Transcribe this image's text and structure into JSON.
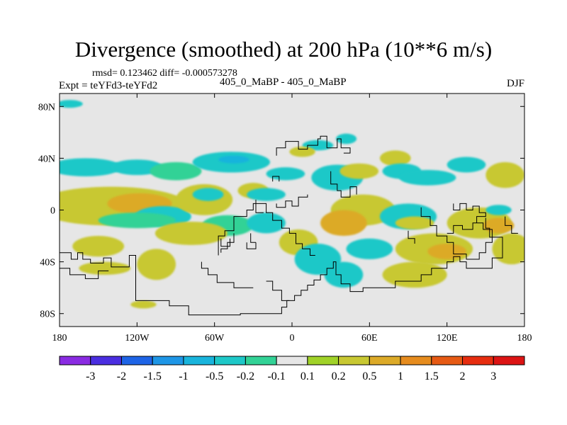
{
  "header": {
    "title": "Divergence (smoothed) at 200 hPa (10**6 m/s)",
    "stats": "rmsd= 0.123462  diff= -0.000573278",
    "expt": "Expt = teYFd3-teYFd2",
    "case": "405_0_MaBP - 405_0_MaBP",
    "season": "DJF"
  },
  "chart_data": {
    "type": "heatmap",
    "title": "Divergence (smoothed) at 200 hPa (10**6 m/s)",
    "subtitle": "405_0_MaBP - 405_0_MaBP",
    "xlabel": "",
    "ylabel": "",
    "xlim": [
      -180,
      180
    ],
    "ylim": [
      -90,
      90
    ],
    "x_ticks": [
      {
        "value": -180,
        "label": "180"
      },
      {
        "value": -120,
        "label": "120W"
      },
      {
        "value": -60,
        "label": "60W"
      },
      {
        "value": 0,
        "label": "0"
      },
      {
        "value": 60,
        "label": "60E"
      },
      {
        "value": 120,
        "label": "120E"
      },
      {
        "value": 180,
        "label": "180"
      }
    ],
    "y_ticks": [
      {
        "value": 80,
        "label": "80N"
      },
      {
        "value": 40,
        "label": "40N"
      },
      {
        "value": 0,
        "label": "0"
      },
      {
        "value": -40,
        "label": "40S"
      },
      {
        "value": -80,
        "label": "80S"
      }
    ],
    "background_color": "#e6e6e6",
    "legend": {
      "placement": "bottom",
      "labels": [
        "-3",
        "-2",
        "-1.5",
        "-1",
        "-0.5",
        "-0.2",
        "-0.1",
        "0.1",
        "0.2",
        "0.5",
        "1",
        "1.5",
        "2",
        "3"
      ],
      "colors": [
        "#8a2be2",
        "#4a2ee0",
        "#1e64e6",
        "#1e96e6",
        "#19b4dc",
        "#1ec8c8",
        "#32d296",
        "#e6e6e6",
        "#a0d228",
        "#c8c832",
        "#dcaa28",
        "#e68c1e",
        "#e65a14",
        "#e62d0f",
        "#dc1414"
      ]
    },
    "blobs": [
      {
        "lon": -172,
        "lat": 82,
        "rx": 10,
        "ry": 3,
        "value": -0.3
      },
      {
        "lon": -160,
        "lat": 33,
        "rx": 28,
        "ry": 7,
        "value": -0.3
      },
      {
        "lon": -120,
        "lat": 33,
        "rx": 20,
        "ry": 6,
        "value": -0.3
      },
      {
        "lon": -90,
        "lat": 30,
        "rx": 20,
        "ry": 7,
        "value": -0.2
      },
      {
        "lon": -47,
        "lat": 37,
        "rx": 30,
        "ry": 8,
        "value": -0.4
      },
      {
        "lon": -45,
        "lat": 39,
        "rx": 12,
        "ry": 3,
        "value": -0.9
      },
      {
        "lon": -140,
        "lat": 3,
        "rx": 60,
        "ry": 15,
        "value": 0.4
      },
      {
        "lon": -118,
        "lat": 5,
        "rx": 25,
        "ry": 8,
        "value": 0.9
      },
      {
        "lon": -100,
        "lat": -5,
        "rx": 22,
        "ry": 8,
        "value": -0.3
      },
      {
        "lon": -120,
        "lat": -8,
        "rx": 30,
        "ry": 6,
        "value": -0.2
      },
      {
        "lon": -68,
        "lat": 8,
        "rx": 22,
        "ry": 12,
        "value": 0.3
      },
      {
        "lon": -65,
        "lat": 12,
        "rx": 12,
        "ry": 5,
        "value": -0.3
      },
      {
        "lon": -50,
        "lat": -12,
        "rx": 20,
        "ry": 8,
        "value": -0.2
      },
      {
        "lon": -78,
        "lat": -18,
        "rx": 28,
        "ry": 9,
        "value": 0.3
      },
      {
        "lon": -30,
        "lat": 15,
        "rx": 12,
        "ry": 6,
        "value": 0.3
      },
      {
        "lon": -20,
        "lat": 12,
        "rx": 15,
        "ry": 5,
        "value": -0.3
      },
      {
        "lon": -20,
        "lat": -10,
        "rx": 15,
        "ry": 8,
        "value": -0.3
      },
      {
        "lon": -150,
        "lat": -28,
        "rx": 20,
        "ry": 8,
        "value": 0.3
      },
      {
        "lon": -105,
        "lat": -42,
        "rx": 15,
        "ry": 12,
        "value": 0.3
      },
      {
        "lon": -145,
        "lat": -45,
        "rx": 20,
        "ry": 5,
        "value": 0.3
      },
      {
        "lon": -115,
        "lat": -73,
        "rx": 10,
        "ry": 3,
        "value": 0.3
      },
      {
        "lon": 20,
        "lat": 50,
        "rx": 12,
        "ry": 4,
        "value": -0.3
      },
      {
        "lon": 8,
        "lat": 45,
        "rx": 10,
        "ry": 4,
        "value": 0.3
      },
      {
        "lon": 42,
        "lat": 55,
        "rx": 8,
        "ry": 4,
        "value": -0.3
      },
      {
        "lon": 35,
        "lat": 25,
        "rx": 20,
        "ry": 10,
        "value": -0.3
      },
      {
        "lon": 52,
        "lat": 30,
        "rx": 15,
        "ry": 6,
        "value": 0.3
      },
      {
        "lon": 80,
        "lat": 40,
        "rx": 12,
        "ry": 6,
        "value": 0.3
      },
      {
        "lon": 85,
        "lat": 30,
        "rx": 15,
        "ry": 6,
        "value": -0.3
      },
      {
        "lon": 105,
        "lat": 25,
        "rx": 22,
        "ry": 6,
        "value": -0.3
      },
      {
        "lon": 135,
        "lat": 35,
        "rx": 15,
        "ry": 6,
        "value": -0.3
      },
      {
        "lon": 165,
        "lat": 27,
        "rx": 15,
        "ry": 10,
        "value": 0.3
      },
      {
        "lon": 55,
        "lat": 0,
        "rx": 25,
        "ry": 12,
        "value": 0.4
      },
      {
        "lon": 40,
        "lat": -10,
        "rx": 18,
        "ry": 10,
        "value": 0.6
      },
      {
        "lon": 90,
        "lat": -5,
        "rx": 22,
        "ry": 10,
        "value": -0.3
      },
      {
        "lon": 95,
        "lat": -10,
        "rx": 15,
        "ry": 5,
        "value": 0.3
      },
      {
        "lon": 145,
        "lat": -10,
        "rx": 25,
        "ry": 12,
        "value": 0.3
      },
      {
        "lon": 160,
        "lat": -12,
        "rx": 12,
        "ry": 6,
        "value": 0.8
      },
      {
        "lon": 110,
        "lat": -30,
        "rx": 30,
        "ry": 12,
        "value": 0.3
      },
      {
        "lon": 120,
        "lat": -32,
        "rx": 15,
        "ry": 6,
        "value": 0.8
      },
      {
        "lon": 5,
        "lat": -25,
        "rx": 15,
        "ry": 10,
        "value": 0.3
      },
      {
        "lon": 20,
        "lat": -38,
        "rx": 18,
        "ry": 12,
        "value": -0.3
      },
      {
        "lon": 60,
        "lat": -30,
        "rx": 18,
        "ry": 8,
        "value": -0.3
      },
      {
        "lon": 40,
        "lat": -50,
        "rx": 15,
        "ry": 10,
        "value": -0.3
      },
      {
        "lon": 95,
        "lat": -50,
        "rx": 25,
        "ry": 10,
        "value": 0.3
      },
      {
        "lon": 170,
        "lat": -30,
        "rx": 15,
        "ry": 12,
        "value": 0.3
      },
      {
        "lon": 160,
        "lat": 0,
        "rx": 10,
        "ry": 4,
        "value": -0.3
      },
      {
        "lon": -5,
        "lat": 28,
        "rx": 15,
        "ry": 5,
        "value": -0.3
      }
    ],
    "coastlines": [
      [
        [
          -180,
          -33
        ],
        [
          -171,
          -33
        ],
        [
          -171,
          -38
        ],
        [
          -166,
          -38
        ],
        [
          -166,
          -33
        ],
        [
          -162,
          -33
        ],
        [
          -162,
          -38
        ],
        [
          -156,
          -38
        ],
        [
          -156,
          -41
        ],
        [
          -146,
          -41
        ],
        [
          -146,
          -37
        ],
        [
          -140,
          -37
        ],
        [
          -140,
          -44
        ],
        [
          -126,
          -44
        ],
        [
          -126,
          -35
        ],
        [
          -121,
          -35
        ],
        [
          -121,
          -70
        ],
        [
          -95,
          -70
        ],
        [
          -95,
          -74
        ],
        [
          -80,
          -74
        ],
        [
          -80,
          -81
        ],
        [
          -40,
          -81
        ],
        [
          -40,
          -80
        ],
        [
          -8,
          -80
        ],
        [
          -8,
          -75
        ],
        [
          -4,
          -75
        ],
        [
          -4,
          -70
        ],
        [
          2,
          -70
        ],
        [
          2,
          -66
        ],
        [
          7,
          -66
        ],
        [
          7,
          -62
        ],
        [
          12,
          -62
        ],
        [
          12,
          -58
        ],
        [
          17,
          -58
        ],
        [
          17,
          -54
        ],
        [
          22,
          -54
        ],
        [
          22,
          -50
        ],
        [
          27,
          -50
        ],
        [
          27,
          -45
        ],
        [
          32,
          -45
        ],
        [
          32,
          -40
        ],
        [
          34,
          -40
        ],
        [
          34,
          -50
        ],
        [
          38,
          -50
        ],
        [
          38,
          -57
        ],
        [
          45,
          -57
        ],
        [
          45,
          -63
        ],
        [
          55,
          -63
        ],
        [
          55,
          -60
        ],
        [
          80,
          -60
        ],
        [
          80,
          -55
        ],
        [
          100,
          -55
        ],
        [
          100,
          -50
        ],
        [
          108,
          -50
        ],
        [
          108,
          -45
        ],
        [
          120,
          -45
        ],
        [
          120,
          -40
        ],
        [
          125,
          -40
        ],
        [
          125,
          -36
        ],
        [
          130,
          -36
        ],
        [
          130,
          -40
        ],
        [
          135,
          -40
        ],
        [
          135,
          -45
        ],
        [
          155,
          -45
        ],
        [
          155,
          -37
        ],
        [
          163,
          -37
        ],
        [
          163,
          -21
        ],
        [
          153,
          -21
        ],
        [
          153,
          -14
        ],
        [
          150,
          -14
        ],
        [
          150,
          -6
        ]
      ],
      [
        [
          -180,
          -45
        ],
        [
          -172,
          -45
        ],
        [
          -172,
          -50
        ],
        [
          -160,
          -50
        ],
        [
          -160,
          -53
        ],
        [
          -150,
          -53
        ],
        [
          -150,
          -47
        ],
        [
          -142,
          -47
        ]
      ],
      [
        [
          -57,
          -35
        ],
        [
          -57,
          -20
        ],
        [
          -52,
          -20
        ],
        [
          -52,
          -16
        ],
        [
          -45,
          -16
        ],
        [
          -45,
          -5
        ],
        [
          -35,
          -5
        ],
        [
          -35,
          0
        ],
        [
          -30,
          0
        ],
        [
          -30,
          5
        ],
        [
          -20,
          5
        ],
        [
          -20,
          -2
        ],
        [
          -15,
          -2
        ],
        [
          -15,
          -8
        ],
        [
          -8,
          -8
        ],
        [
          -8,
          -14
        ],
        [
          -2,
          -14
        ],
        [
          -2,
          -18
        ],
        [
          3,
          -18
        ],
        [
          3,
          -26
        ],
        [
          8,
          -26
        ],
        [
          8,
          -30
        ],
        [
          14,
          -30
        ],
        [
          14,
          -35
        ],
        [
          18,
          -35
        ]
      ],
      [
        [
          -12,
          42
        ],
        [
          -12,
          48
        ],
        [
          -5,
          48
        ],
        [
          -5,
          53
        ],
        [
          5,
          53
        ],
        [
          5,
          47
        ],
        [
          12,
          47
        ],
        [
          12,
          50
        ],
        [
          20,
          50
        ],
        [
          20,
          55
        ],
        [
          22,
          55
        ],
        [
          22,
          57
        ],
        [
          27,
          57
        ],
        [
          27,
          48
        ],
        [
          35,
          48
        ],
        [
          35,
          55
        ],
        [
          38,
          55
        ],
        [
          38,
          48
        ],
        [
          45,
          48
        ],
        [
          45,
          44
        ],
        [
          40,
          44
        ]
      ],
      [
        [
          -20,
          -55
        ],
        [
          -15,
          -55
        ],
        [
          -15,
          -62
        ],
        [
          -8,
          -62
        ],
        [
          -8,
          -70
        ],
        [
          -2,
          -70
        ]
      ],
      [
        [
          -70,
          -40
        ],
        [
          -70,
          -45
        ],
        [
          -65,
          -45
        ],
        [
          -65,
          -50
        ],
        [
          -58,
          -50
        ],
        [
          -58,
          -56
        ],
        [
          -45,
          -56
        ],
        [
          -45,
          -60
        ],
        [
          -30,
          -60
        ]
      ],
      [
        [
          -45,
          -18
        ],
        [
          -45,
          -25
        ],
        [
          -50,
          -25
        ],
        [
          -50,
          -30
        ],
        [
          -55,
          -30
        ],
        [
          -55,
          -33
        ]
      ],
      [
        [
          -12,
          5
        ],
        [
          -12,
          2
        ],
        [
          -5,
          2
        ],
        [
          -5,
          7
        ],
        [
          0,
          7
        ],
        [
          0,
          3
        ],
        [
          5,
          3
        ],
        [
          5,
          10
        ],
        [
          12,
          10
        ],
        [
          12,
          12
        ]
      ],
      [
        [
          30,
          30
        ],
        [
          30,
          20
        ],
        [
          35,
          20
        ],
        [
          35,
          15
        ],
        [
          38,
          15
        ],
        [
          38,
          10
        ],
        [
          45,
          10
        ],
        [
          45,
          18
        ],
        [
          50,
          18
        ],
        [
          50,
          12
        ]
      ],
      [
        [
          100,
          2
        ],
        [
          100,
          -5
        ],
        [
          107,
          -5
        ],
        [
          107,
          -12
        ],
        [
          112,
          -12
        ],
        [
          112,
          -20
        ],
        [
          120,
          -20
        ],
        [
          120,
          -25
        ],
        [
          125,
          -25
        ],
        [
          125,
          -34
        ],
        [
          135,
          -34
        ],
        [
          135,
          -38
        ],
        [
          145,
          -38
        ],
        [
          145,
          -33
        ],
        [
          150,
          -33
        ],
        [
          150,
          -25
        ],
        [
          155,
          -25
        ],
        [
          155,
          -15
        ],
        [
          148,
          -15
        ],
        [
          148,
          -10
        ],
        [
          140,
          -10
        ],
        [
          140,
          -15
        ],
        [
          132,
          -15
        ],
        [
          132,
          -12
        ],
        [
          125,
          -12
        ],
        [
          125,
          -18
        ],
        [
          120,
          -18
        ]
      ],
      [
        [
          125,
          5
        ],
        [
          125,
          0
        ],
        [
          130,
          0
        ],
        [
          130,
          5
        ],
        [
          135,
          5
        ],
        [
          135,
          0
        ],
        [
          140,
          0
        ],
        [
          140,
          3
        ],
        [
          145,
          3
        ],
        [
          145,
          -2
        ],
        [
          150,
          -2
        ],
        [
          150,
          -5
        ],
        [
          143,
          -5
        ],
        [
          143,
          -10
        ]
      ],
      [
        [
          90,
          -16
        ],
        [
          90,
          -22
        ],
        [
          95,
          -22
        ],
        [
          95,
          -26
        ]
      ],
      [
        [
          165,
          -5
        ],
        [
          165,
          -12
        ],
        [
          170,
          -12
        ],
        [
          170,
          -18
        ],
        [
          175,
          -18
        ]
      ],
      [
        [
          -15,
          22
        ],
        [
          -15,
          26
        ],
        [
          -10,
          26
        ],
        [
          -10,
          22
        ]
      ],
      [
        [
          -32,
          -18
        ],
        [
          -32,
          -25
        ],
        [
          -28,
          -25
        ]
      ],
      [
        [
          -55,
          -22
        ],
        [
          -55,
          -28
        ],
        [
          -48,
          -28
        ],
        [
          -48,
          -22
        ]
      ],
      [
        [
          -28,
          8
        ],
        [
          -28,
          -2
        ],
        [
          -22,
          -2
        ]
      ],
      [
        [
          -35,
          -25
        ],
        [
          -35,
          -30
        ],
        [
          -28,
          -30
        ],
        [
          -28,
          -25
        ]
      ]
    ]
  }
}
